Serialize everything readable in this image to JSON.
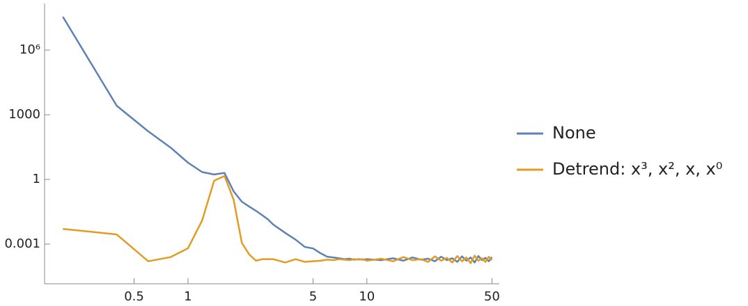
{
  "chart_data": {
    "type": "line",
    "xscale": "log",
    "yscale": "log",
    "x": [
      0.2,
      0.4,
      0.6,
      0.8,
      1.0,
      1.2,
      1.4,
      1.6,
      1.8,
      2.0,
      2.2,
      2.4,
      2.6,
      2.8,
      3.0,
      3.5,
      4.0,
      4.5,
      5.0,
      5.5,
      6.0,
      6.5,
      7.0,
      7.5,
      8.0,
      8.5,
      9.0,
      9.5,
      10,
      12,
      14,
      16,
      18,
      20,
      22,
      24,
      26,
      28,
      30,
      32,
      34,
      36,
      38,
      40,
      42,
      44,
      46,
      48,
      50
    ],
    "series": [
      {
        "name": "None",
        "color": "#5e81b5",
        "values": [
          35000000,
          2600,
          170,
          30,
          6,
          2.2,
          1.7,
          2,
          0.28,
          0.093,
          0.055,
          0.035,
          0.022,
          0.014,
          0.008,
          0.0033,
          0.0016,
          0.00074,
          0.00063,
          0.00038,
          0.00026,
          0.00024,
          0.00022,
          0.0002,
          0.00021,
          0.00019,
          0.0002,
          0.00019,
          0.0002,
          0.00018,
          0.00022,
          0.00017,
          0.00024,
          0.00019,
          0.00021,
          0.00016,
          0.00026,
          0.00018,
          0.00022,
          0.00015,
          0.00027,
          0.00017,
          0.00024,
          0.00014,
          0.00028,
          0.00018,
          0.00023,
          0.00016,
          0.00025
        ]
      },
      {
        "name": "Detrend: x³, x², x, x⁰",
        "color": "#e19c24",
        "values": [
          0.0051,
          0.0028,
          0.00016,
          0.00025,
          0.00064,
          0.0125,
          0.87,
          1.45,
          0.115,
          0.00115,
          0.00033,
          0.00017,
          0.0002,
          0.0002,
          0.0002,
          0.00014,
          0.0002,
          0.00015,
          0.00016,
          0.00017,
          0.00019,
          0.00018,
          0.0002,
          0.00019,
          0.00018,
          0.0002,
          0.00019,
          0.0002,
          0.00017,
          0.00021,
          0.00016,
          0.00025,
          0.00018,
          0.0002,
          0.00015,
          0.00027,
          0.00017,
          0.00023,
          0.00014,
          0.00028,
          0.00016,
          0.00024,
          0.00013,
          0.00029,
          0.00017,
          0.00022,
          0.00015,
          0.00026,
          0.00018
        ]
      }
    ],
    "xlim": [
      0.158,
      55
    ],
    "ylim": [
      1.45e-05,
      145000000
    ],
    "xticks": [
      0.5,
      1,
      5,
      10,
      50
    ],
    "yticks": [
      0.001,
      1,
      1000,
      {
        "value": 1000000,
        "label": "10⁶"
      }
    ],
    "legend": "right"
  }
}
